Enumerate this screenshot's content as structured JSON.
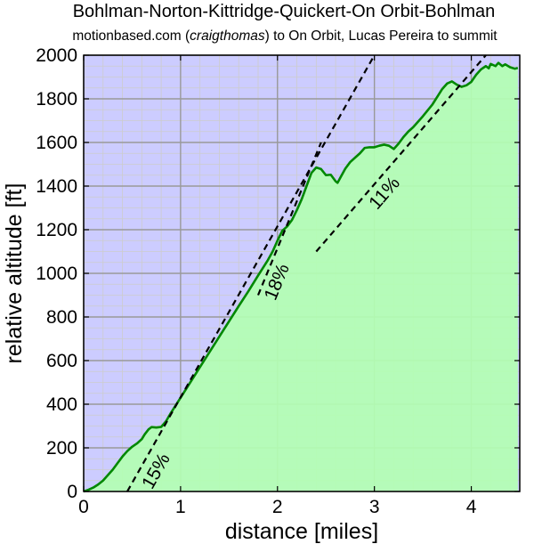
{
  "chart_data": {
    "type": "area",
    "title": "Bohlman-Norton-Kittridge-Quickert-On Orbit-Bohlman",
    "subtitle": {
      "prefix": "motionbased.com (",
      "user": "craigthomas",
      "suffix": ") to On Orbit, Lucas Pereira to summit"
    },
    "xlabel": "distance [miles]",
    "ylabel": "relative altitude [ft]",
    "xlim": [
      0,
      4.5
    ],
    "ylim": [
      0,
      2000
    ],
    "x_ticks": [
      0,
      1,
      2,
      3,
      4
    ],
    "y_ticks": [
      0,
      200,
      400,
      600,
      800,
      1000,
      1200,
      1400,
      1600,
      1800,
      2000
    ],
    "grid": true,
    "colors": {
      "sky": "#ccccff",
      "fill": "#b3ffb3",
      "line": "#008800",
      "major_grid": "#999999",
      "minor_grid": "#cccccc",
      "grade_lines": "#000000"
    },
    "series": [
      {
        "points": [
          [
            0,
            0
          ],
          [
            0.05,
            8
          ],
          [
            0.1,
            18
          ],
          [
            0.15,
            32
          ],
          [
            0.2,
            50
          ],
          [
            0.25,
            75
          ],
          [
            0.3,
            100
          ],
          [
            0.35,
            130
          ],
          [
            0.4,
            160
          ],
          [
            0.45,
            185
          ],
          [
            0.5,
            205
          ],
          [
            0.55,
            220
          ],
          [
            0.6,
            240
          ],
          [
            0.63,
            262
          ],
          [
            0.67,
            285
          ],
          [
            0.7,
            295
          ],
          [
            0.75,
            293
          ],
          [
            0.8,
            296
          ],
          [
            0.85,
            322
          ],
          [
            0.9,
            360
          ],
          [
            1.0,
            430
          ],
          [
            1.1,
            500
          ],
          [
            1.2,
            570
          ],
          [
            1.3,
            640
          ],
          [
            1.4,
            710
          ],
          [
            1.5,
            780
          ],
          [
            1.6,
            850
          ],
          [
            1.7,
            918
          ],
          [
            1.8,
            990
          ],
          [
            1.9,
            1060
          ],
          [
            1.95,
            1100
          ],
          [
            2.0,
            1150
          ],
          [
            2.05,
            1195
          ],
          [
            2.1,
            1215
          ],
          [
            2.15,
            1245
          ],
          [
            2.2,
            1290
          ],
          [
            2.25,
            1340
          ],
          [
            2.3,
            1400
          ],
          [
            2.35,
            1460
          ],
          [
            2.4,
            1485
          ],
          [
            2.45,
            1478
          ],
          [
            2.5,
            1450
          ],
          [
            2.55,
            1452
          ],
          [
            2.6,
            1422
          ],
          [
            2.62,
            1415
          ],
          [
            2.65,
            1440
          ],
          [
            2.7,
            1480
          ],
          [
            2.75,
            1510
          ],
          [
            2.8,
            1530
          ],
          [
            2.85,
            1550
          ],
          [
            2.9,
            1575
          ],
          [
            2.95,
            1578
          ],
          [
            3.0,
            1578
          ],
          [
            3.05,
            1585
          ],
          [
            3.1,
            1590
          ],
          [
            3.15,
            1585
          ],
          [
            3.2,
            1570
          ],
          [
            3.25,
            1595
          ],
          [
            3.3,
            1625
          ],
          [
            3.35,
            1650
          ],
          [
            3.4,
            1670
          ],
          [
            3.5,
            1720
          ],
          [
            3.6,
            1775
          ],
          [
            3.65,
            1810
          ],
          [
            3.7,
            1845
          ],
          [
            3.75,
            1870
          ],
          [
            3.8,
            1880
          ],
          [
            3.85,
            1865
          ],
          [
            3.9,
            1855
          ],
          [
            3.95,
            1862
          ],
          [
            4.0,
            1878
          ],
          [
            4.05,
            1910
          ],
          [
            4.1,
            1935
          ],
          [
            4.15,
            1950
          ],
          [
            4.18,
            1940
          ],
          [
            4.2,
            1960
          ],
          [
            4.25,
            1950
          ],
          [
            4.28,
            1965
          ],
          [
            4.32,
            1950
          ],
          [
            4.35,
            1958
          ],
          [
            4.4,
            1945
          ],
          [
            4.45,
            1938
          ],
          [
            4.48,
            1942
          ]
        ]
      }
    ],
    "grade_lines": [
      {
        "label": "15%",
        "from": [
          0.45,
          0
        ],
        "to": [
          3.0,
          2000
        ],
        "label_at": [
          0.8,
          80
        ]
      },
      {
        "label": "18%",
        "from": [
          1.8,
          900
        ],
        "to": [
          2.45,
          1600
        ],
        "label_at": [
          2.05,
          950
        ]
      },
      {
        "label": "11%",
        "from": [
          2.4,
          1100
        ],
        "to": [
          4.15,
          2000
        ],
        "label_at": [
          3.15,
          1350
        ]
      }
    ]
  }
}
